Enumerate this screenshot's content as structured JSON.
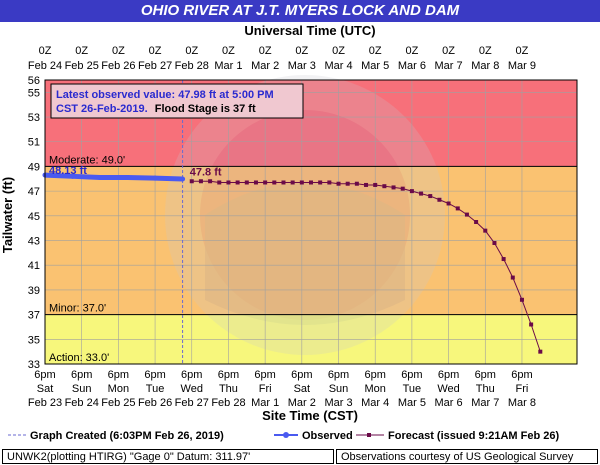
{
  "title": "OHIO RIVER AT J.T. MYERS LOCK AND DAM",
  "top_axis_title": "Universal Time (UTC)",
  "bottom_axis_title": "Site Time (CST)",
  "y_axis_title": "Tailwater (ft)",
  "colors": {
    "title_bg": "#3a3ac4",
    "zone_major": "#f7707a",
    "zone_moderate": "#fac271",
    "zone_minor": "#f7f77c",
    "observed": "#4a5af0",
    "forecast": "#6a0a48",
    "annotation": "#2a2acf"
  },
  "annotation_box": {
    "line1": "Latest observed value: 47.98 ft at 5:00 PM",
    "line2a": "CST 26-Feb-2019.",
    "line2b": "Flood Stage is 37 ft"
  },
  "footer": {
    "left": "UNWK2(plotting HTIRG) \"Gage 0\" Datum: 311.97'",
    "right": "Observations courtesy of US Geological Survey"
  },
  "legend": {
    "created": "Graph Created (6:03PM Feb 26, 2019)",
    "observed": "Observed",
    "forecast": "Forecast (issued 9:21AM Feb 26)"
  },
  "chart_data": {
    "type": "line",
    "ylim": [
      33,
      56
    ],
    "yticks": [
      33,
      35,
      37,
      39,
      41,
      43,
      45,
      47,
      49,
      51,
      53,
      55,
      56
    ],
    "x_range_cst_hours": [
      0,
      348
    ],
    "graph_created_cst_hour": 90,
    "top_ticks": [
      {
        "time": "0Z",
        "date": "Feb 24"
      },
      {
        "time": "0Z",
        "date": "Feb 25"
      },
      {
        "time": "0Z",
        "date": "Feb 26"
      },
      {
        "time": "0Z",
        "date": "Feb 27"
      },
      {
        "time": "0Z",
        "date": "Feb 28"
      },
      {
        "time": "0Z",
        "date": "Mar 1"
      },
      {
        "time": "0Z",
        "date": "Mar 2"
      },
      {
        "time": "0Z",
        "date": "Mar 3"
      },
      {
        "time": "0Z",
        "date": "Mar 4"
      },
      {
        "time": "0Z",
        "date": "Mar 5"
      },
      {
        "time": "0Z",
        "date": "Mar 6"
      },
      {
        "time": "0Z",
        "date": "Mar 7"
      },
      {
        "time": "0Z",
        "date": "Mar 8"
      },
      {
        "time": "0Z",
        "date": "Mar 9"
      }
    ],
    "bottom_ticks": [
      {
        "time": "6pm",
        "day": "Sat",
        "date": "Feb 23"
      },
      {
        "time": "6pm",
        "day": "Sun",
        "date": "Feb 24"
      },
      {
        "time": "6pm",
        "day": "Mon",
        "date": "Feb 25"
      },
      {
        "time": "6pm",
        "day": "Tue",
        "date": "Feb 26"
      },
      {
        "time": "6pm",
        "day": "Wed",
        "date": "Feb 27"
      },
      {
        "time": "6pm",
        "day": "Thu",
        "date": "Feb 28"
      },
      {
        "time": "6pm",
        "day": "Fri",
        "date": "Mar 1"
      },
      {
        "time": "6pm",
        "day": "Sat",
        "date": "Mar 2"
      },
      {
        "time": "6pm",
        "day": "Sun",
        "date": "Mar 3"
      },
      {
        "time": "6pm",
        "day": "Mon",
        "date": "Mar 4"
      },
      {
        "time": "6pm",
        "day": "Tue",
        "date": "Mar 5"
      },
      {
        "time": "6pm",
        "day": "Wed",
        "date": "Mar 6"
      },
      {
        "time": "6pm",
        "day": "Thu",
        "date": "Mar 7"
      },
      {
        "time": "6pm",
        "day": "Fri",
        "date": "Mar 8"
      }
    ],
    "thresholds": [
      {
        "name": "Moderate",
        "label": "Moderate: 49.0'",
        "value": 49.0
      },
      {
        "name": "Minor",
        "label": "Minor: 37.0'",
        "value": 37.0
      },
      {
        "name": "Action",
        "label": "Action: 33.0'",
        "value": 33.0
      }
    ],
    "zones": [
      {
        "from": 49,
        "to": 56,
        "color": "#f7707a"
      },
      {
        "from": 37,
        "to": 49,
        "color": "#fac271"
      },
      {
        "from": 33,
        "to": 37,
        "color": "#f7f77c"
      }
    ],
    "observed": {
      "name": "Observed",
      "label": "48.13 ft",
      "points": [
        [
          0,
          48.3
        ],
        [
          18,
          48.2
        ],
        [
          36,
          48.1
        ],
        [
          54,
          48.1
        ],
        [
          72,
          48.05
        ],
        [
          90,
          47.98
        ]
      ]
    },
    "forecast": {
      "name": "Forecast",
      "label": "47.8 ft",
      "points": [
        [
          96,
          47.8
        ],
        [
          102,
          47.8
        ],
        [
          108,
          47.8
        ],
        [
          114,
          47.7
        ],
        [
          120,
          47.7
        ],
        [
          126,
          47.7
        ],
        [
          132,
          47.7
        ],
        [
          138,
          47.7
        ],
        [
          144,
          47.7
        ],
        [
          150,
          47.7
        ],
        [
          156,
          47.7
        ],
        [
          162,
          47.7
        ],
        [
          168,
          47.7
        ],
        [
          174,
          47.7
        ],
        [
          180,
          47.7
        ],
        [
          186,
          47.7
        ],
        [
          192,
          47.6
        ],
        [
          198,
          47.6
        ],
        [
          204,
          47.6
        ],
        [
          210,
          47.5
        ],
        [
          216,
          47.5
        ],
        [
          222,
          47.4
        ],
        [
          228,
          47.3
        ],
        [
          234,
          47.2
        ],
        [
          240,
          47.0
        ],
        [
          246,
          46.8
        ],
        [
          252,
          46.6
        ],
        [
          258,
          46.3
        ],
        [
          264,
          46.0
        ],
        [
          270,
          45.6
        ],
        [
          276,
          45.1
        ],
        [
          282,
          44.5
        ],
        [
          288,
          43.8
        ],
        [
          294,
          42.8
        ],
        [
          300,
          41.5
        ],
        [
          306,
          40.0
        ],
        [
          312,
          38.2
        ],
        [
          318,
          36.2
        ],
        [
          324,
          34.0
        ]
      ]
    }
  }
}
